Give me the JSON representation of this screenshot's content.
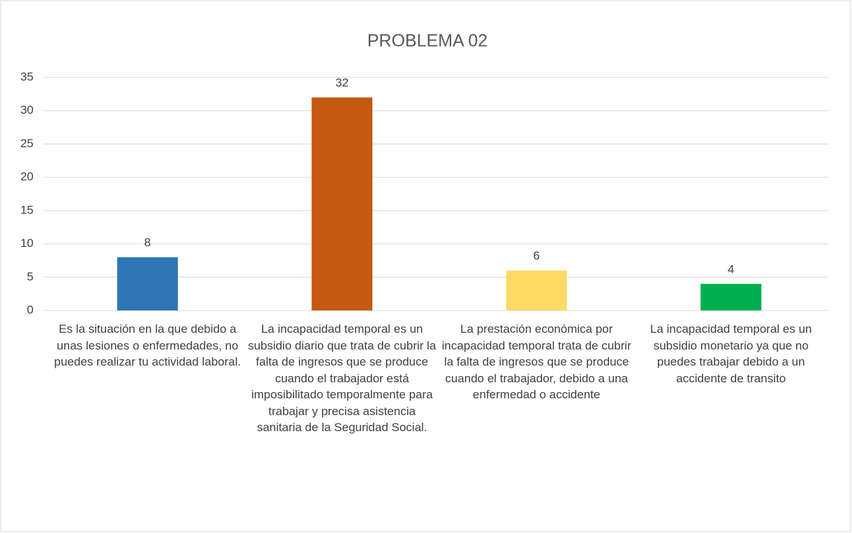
{
  "chart_data": {
    "type": "bar",
    "title": "PROBLEMA 02",
    "categories": [
      "Es la situación en la que debido a unas lesiones o enfermedades, no puedes realizar tu actividad laboral.",
      "La incapacidad temporal es un subsidio diario que trata de cubrir la falta de ingresos que se produce cuando el trabajador está imposibilitado temporalmente para trabajar y precisa asistencia sanitaria de la Seguridad Social.",
      "La prestación económica por incapacidad temporal trata de cubrir la falta de ingresos que se produce cuando el trabajador, debido a una enfermedad o accidente",
      "La incapacidad temporal es un subsidio monetario ya que no puedes trabajar debido a un accidente de transito"
    ],
    "values": [
      8,
      32,
      6,
      4
    ],
    "colors": [
      "#2e75b6",
      "#c55a11",
      "#ffd966",
      "#00b050"
    ],
    "ylim": [
      0,
      35
    ],
    "yticks": [
      0,
      5,
      10,
      15,
      20,
      25,
      30,
      35
    ],
    "grid": true
  }
}
